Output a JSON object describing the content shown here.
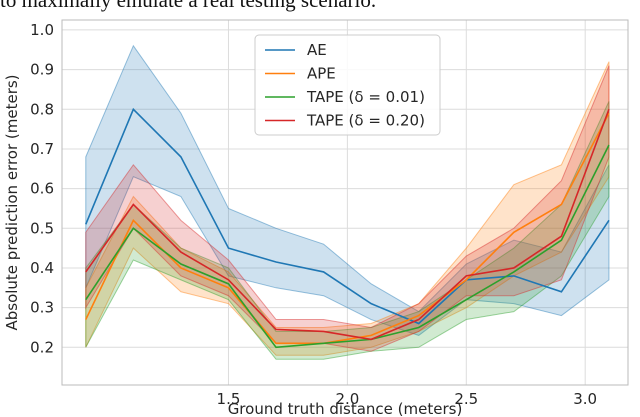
{
  "text_above": "to maximally emulate a real testing scenario.",
  "chart_data": {
    "type": "line",
    "xlabel": "Ground truth distance (meters)",
    "ylabel": "Absolute prediction error (meters)",
    "x": [
      0.9,
      1.1,
      1.3,
      1.5,
      1.7,
      1.9,
      2.1,
      2.3,
      2.5,
      2.7,
      2.9,
      3.1
    ],
    "series": [
      {
        "name": "AE",
        "color": "#1f77b4",
        "values": [
          0.51,
          0.8,
          0.68,
          0.45,
          0.415,
          0.39,
          0.31,
          0.26,
          0.37,
          0.38,
          0.34,
          0.52
        ],
        "upper": [
          0.68,
          0.96,
          0.79,
          0.55,
          0.5,
          0.46,
          0.36,
          0.29,
          0.41,
          0.47,
          0.44,
          0.66
        ],
        "lower": [
          0.35,
          0.63,
          0.58,
          0.38,
          0.35,
          0.33,
          0.27,
          0.23,
          0.32,
          0.31,
          0.28,
          0.37
        ]
      },
      {
        "name": "APE",
        "color": "#ff7f0e",
        "values": [
          0.27,
          0.52,
          0.4,
          0.35,
          0.21,
          0.21,
          0.23,
          0.28,
          0.37,
          0.49,
          0.56,
          0.79
        ],
        "upper": [
          0.35,
          0.58,
          0.45,
          0.39,
          0.25,
          0.25,
          0.26,
          0.31,
          0.45,
          0.61,
          0.66,
          0.92
        ],
        "lower": [
          0.2,
          0.45,
          0.34,
          0.31,
          0.18,
          0.18,
          0.2,
          0.24,
          0.3,
          0.38,
          0.44,
          0.63
        ]
      },
      {
        "name": "TAPE (δ = 0.01)",
        "color": "#2ca02c",
        "values": [
          0.32,
          0.5,
          0.41,
          0.36,
          0.2,
          0.21,
          0.22,
          0.25,
          0.32,
          0.39,
          0.47,
          0.71
        ],
        "upper": [
          0.4,
          0.56,
          0.45,
          0.4,
          0.24,
          0.24,
          0.25,
          0.29,
          0.37,
          0.45,
          0.56,
          0.82
        ],
        "lower": [
          0.2,
          0.42,
          0.37,
          0.32,
          0.17,
          0.17,
          0.19,
          0.2,
          0.27,
          0.29,
          0.38,
          0.58
        ]
      },
      {
        "name": "TAPE (δ = 0.20)",
        "color": "#d62728",
        "values": [
          0.39,
          0.56,
          0.44,
          0.37,
          0.245,
          0.24,
          0.22,
          0.27,
          0.38,
          0.4,
          0.48,
          0.8
        ],
        "upper": [
          0.49,
          0.66,
          0.52,
          0.42,
          0.27,
          0.27,
          0.25,
          0.31,
          0.43,
          0.5,
          0.62,
          0.91
        ],
        "lower": [
          0.3,
          0.5,
          0.38,
          0.33,
          0.21,
          0.21,
          0.19,
          0.24,
          0.33,
          0.33,
          0.37,
          0.68
        ]
      }
    ],
    "xlim": [
      0.8,
      3.18
    ],
    "ylim": [
      0.105,
      1.025
    ],
    "xticks": [
      1.5,
      {
        "value": 2,
        "label": "2.0"
      },
      2.5,
      {
        "value": 3,
        "label": "3.0"
      }
    ],
    "yticks": [
      0.2,
      0.3,
      0.4,
      0.5,
      0.6,
      0.7,
      0.8,
      0.9,
      {
        "value": 1,
        "label": "1.0"
      }
    ],
    "grid": true,
    "legend": "upper center"
  }
}
